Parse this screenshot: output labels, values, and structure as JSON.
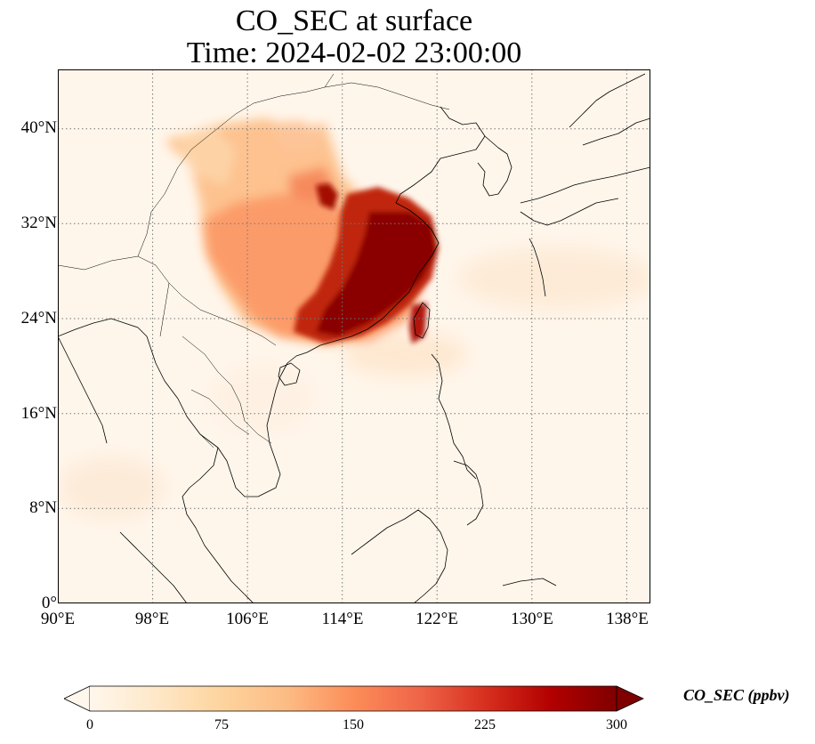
{
  "title": {
    "line1": "CO_SEC at surface",
    "line2": "Time: 2024-02-02 23:00:00"
  },
  "map": {
    "projection": "PlateCarree",
    "lon_range": [
      90,
      140
    ],
    "lat_range": [
      0,
      45
    ],
    "gridlines": "dotted",
    "coastlines": true,
    "borders": true
  },
  "axes": {
    "lat_ticks": [
      {
        "value": 0,
        "label": "0°"
      },
      {
        "value": 8,
        "label": "8°N"
      },
      {
        "value": 16,
        "label": "16°N"
      },
      {
        "value": 24,
        "label": "24°N"
      },
      {
        "value": 32,
        "label": "32°N"
      },
      {
        "value": 40,
        "label": "40°N"
      }
    ],
    "lon_ticks": [
      {
        "value": 90,
        "label": "90°E"
      },
      {
        "value": 98,
        "label": "98°E"
      },
      {
        "value": 106,
        "label": "106°E"
      },
      {
        "value": 114,
        "label": "114°E"
      },
      {
        "value": 122,
        "label": "122°E"
      },
      {
        "value": 130,
        "label": "130°E"
      },
      {
        "value": 138,
        "label": "138°E"
      }
    ]
  },
  "colorbar": {
    "label": "CO_SEC (ppbv)",
    "min": 0,
    "max": 300,
    "extend": "both",
    "colormap": "OrRd",
    "colors": [
      "#fff7ec",
      "#fee8c8",
      "#fdd49e",
      "#fdbb84",
      "#fc8d59",
      "#ef6548",
      "#d7301f",
      "#b30000",
      "#7f0000"
    ],
    "ticks": [
      {
        "value": 0,
        "label": "0"
      },
      {
        "value": 75,
        "label": "75"
      },
      {
        "value": 150,
        "label": "150"
      },
      {
        "value": 225,
        "label": "225"
      },
      {
        "value": 300,
        "label": "300"
      }
    ]
  }
}
